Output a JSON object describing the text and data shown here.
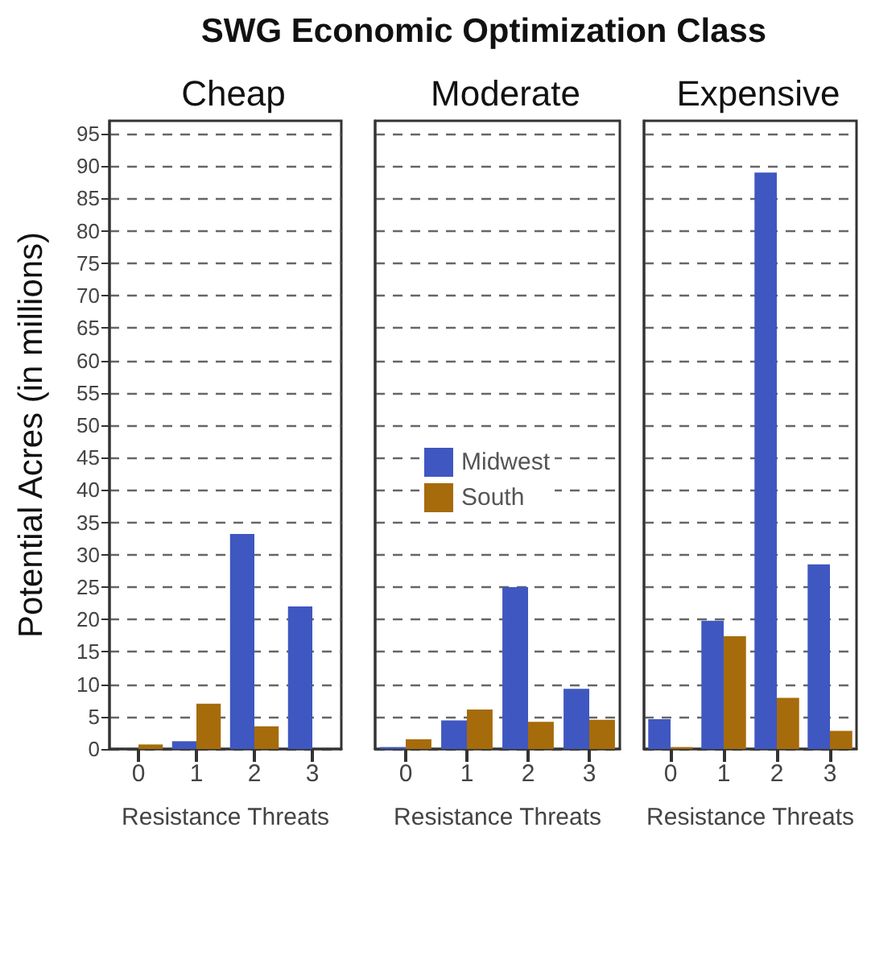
{
  "chart_data": [
    {
      "type": "bar",
      "title": "Cheap",
      "annotations": [
        "SWG Economic Optimization Class"
      ],
      "xlabel": "Resistance Threats",
      "ylabel": "Potential Acres (in millions)",
      "categories": [
        "0",
        "1",
        "2",
        "3"
      ],
      "series": [
        {
          "color": "#3f57c0",
          "values": [
            0,
            1.2,
            33.2,
            22
          ]
        },
        {
          "color": "#a66b0a",
          "values": [
            0.7,
            7,
            3.5,
            0
          ]
        }
      ],
      "ylim": [
        0,
        97
      ],
      "yticks": [
        0,
        5,
        10,
        15,
        20,
        25,
        30,
        35,
        40,
        45,
        50,
        55,
        60,
        65,
        70,
        75,
        80,
        85,
        90,
        95
      ],
      "grid": "y",
      "legend": false
    },
    {
      "type": "bar",
      "title": "Moderate",
      "xlabel": "Resistance Threats",
      "categories": [
        "0",
        "1",
        "2",
        "3"
      ],
      "series": [
        {
          "name": "Midwest",
          "color": "#3f57c0",
          "values": [
            0.3,
            4.4,
            25,
            9.3
          ]
        },
        {
          "name": "South",
          "color": "#a66b0a",
          "values": [
            1.5,
            6.1,
            4.2,
            4.5
          ]
        }
      ],
      "ylim": [
        0,
        97
      ],
      "yticks": [
        0,
        5,
        10,
        15,
        20,
        25,
        30,
        35,
        40,
        45,
        50,
        55,
        60,
        65,
        70,
        75,
        80,
        85,
        90,
        95
      ],
      "grid": "y",
      "legend": "center",
      "tick_labels": "x"
    },
    {
      "type": "bar",
      "title": "Expensive",
      "xlabel": "Resistance Threats",
      "categories": [
        "0",
        "1",
        "2",
        "3"
      ],
      "series": [
        {
          "color": "#3f57c0",
          "values": [
            4.6,
            19.8,
            89,
            28.5
          ]
        },
        {
          "color": "#a66b0a",
          "values": [
            0.3,
            17.4,
            7.9,
            2.8
          ]
        }
      ],
      "ylim": [
        0,
        97
      ],
      "yticks": [
        0,
        5,
        10,
        15,
        20,
        25,
        30,
        35,
        40,
        45,
        50,
        55,
        60,
        65,
        70,
        75,
        80,
        85,
        90,
        95
      ],
      "grid": "y",
      "legend": false,
      "tick_labels": "x"
    }
  ]
}
